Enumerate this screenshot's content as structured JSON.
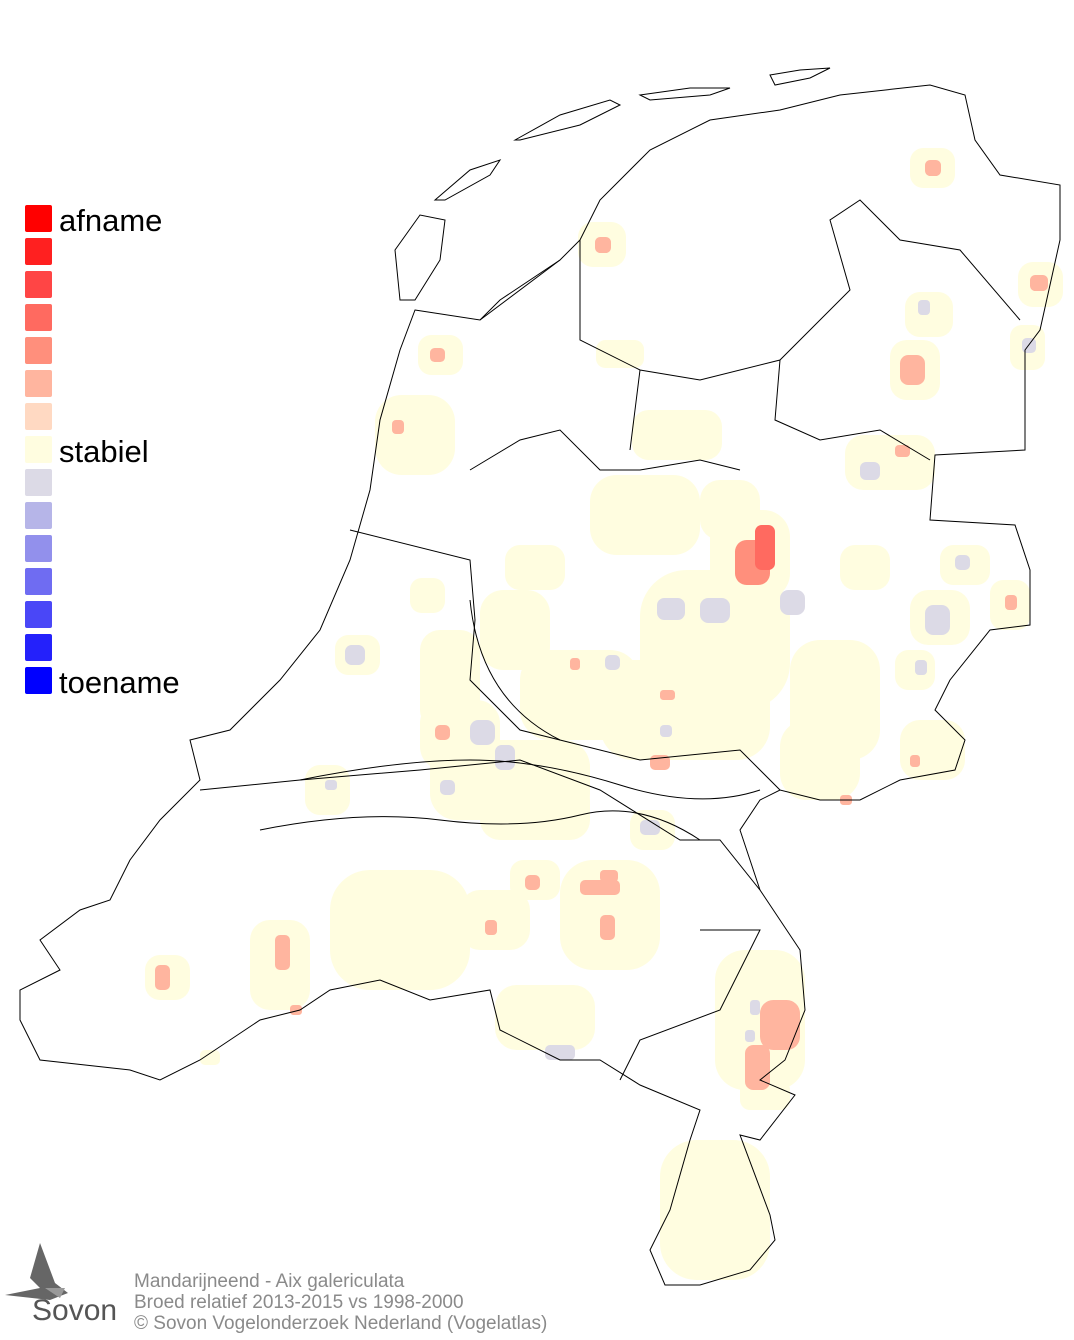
{
  "legend": {
    "top_label": "afname",
    "middle_label": "stabiel",
    "bottom_label": "toename",
    "colors": [
      "#ff0000",
      "#ff2020",
      "#ff4545",
      "#ff6a60",
      "#ff8f7c",
      "#ffb59f",
      "#ffd9c2",
      "#fffde0",
      "#dcdae6",
      "#b6b5e8",
      "#9290ec",
      "#6f6cf2",
      "#4a47f7",
      "#2421fb",
      "#0000ff"
    ]
  },
  "footer": {
    "line1": "Mandarijneend - Aix galericulata",
    "line2": "Broed relatief 2013-2015 vs 1998-2000",
    "line3": "© Sovon Vogelonderzoek Nederland (Vogelatlas)"
  },
  "logo": {
    "text": "Sovon"
  }
}
